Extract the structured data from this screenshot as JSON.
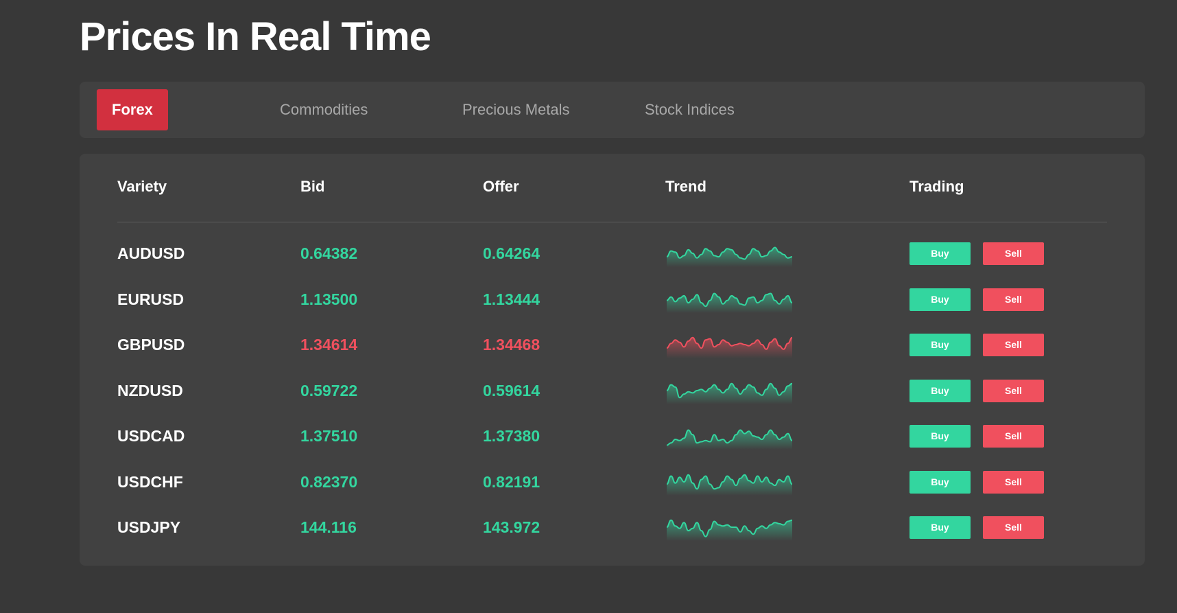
{
  "page": {
    "title": "Prices In Real Time"
  },
  "tabs": [
    {
      "label": "Forex",
      "active": true
    },
    {
      "label": "Commodities",
      "active": false
    },
    {
      "label": "Precious Metals",
      "active": false
    },
    {
      "label": "Stock Indices",
      "active": false
    }
  ],
  "table": {
    "headers": {
      "variety": "Variety",
      "bid": "Bid",
      "offer": "Offer",
      "trend": "Trend",
      "trading": "Trading"
    },
    "rows": [
      {
        "variety": "AUDUSD",
        "bid": "0.64382",
        "offer": "0.64264",
        "direction": "up",
        "trend": [
          0.35,
          0.6,
          0.55,
          0.3,
          0.4,
          0.65,
          0.5,
          0.3,
          0.45,
          0.7,
          0.6,
          0.4,
          0.35,
          0.55,
          0.7,
          0.65,
          0.45,
          0.3,
          0.25,
          0.45,
          0.7,
          0.6,
          0.35,
          0.4,
          0.6,
          0.75,
          0.55,
          0.45,
          0.3,
          0.35
        ]
      },
      {
        "variety": "EURUSD",
        "bid": "1.13500",
        "offer": "1.13444",
        "direction": "up",
        "trend": [
          0.45,
          0.6,
          0.4,
          0.55,
          0.65,
          0.35,
          0.5,
          0.7,
          0.35,
          0.2,
          0.45,
          0.75,
          0.6,
          0.3,
          0.45,
          0.65,
          0.55,
          0.3,
          0.25,
          0.55,
          0.6,
          0.35,
          0.45,
          0.7,
          0.75,
          0.45,
          0.3,
          0.5,
          0.65,
          0.35
        ]
      },
      {
        "variety": "GBPUSD",
        "bid": "1.34614",
        "offer": "1.34468",
        "direction": "down",
        "trend": [
          0.35,
          0.55,
          0.7,
          0.6,
          0.4,
          0.65,
          0.8,
          0.55,
          0.35,
          0.7,
          0.75,
          0.4,
          0.5,
          0.7,
          0.6,
          0.45,
          0.5,
          0.55,
          0.5,
          0.45,
          0.55,
          0.7,
          0.5,
          0.3,
          0.6,
          0.75,
          0.45,
          0.3,
          0.55,
          0.8
        ]
      },
      {
        "variety": "NZDUSD",
        "bid": "0.59722",
        "offer": "0.59614",
        "direction": "up",
        "trend": [
          0.5,
          0.75,
          0.65,
          0.2,
          0.35,
          0.45,
          0.4,
          0.5,
          0.55,
          0.45,
          0.6,
          0.75,
          0.55,
          0.4,
          0.55,
          0.8,
          0.6,
          0.35,
          0.55,
          0.75,
          0.65,
          0.4,
          0.3,
          0.55,
          0.8,
          0.6,
          0.3,
          0.45,
          0.7,
          0.8
        ]
      },
      {
        "variety": "USDCAD",
        "bid": "1.37510",
        "offer": "1.37380",
        "direction": "up",
        "trend": [
          0.1,
          0.2,
          0.35,
          0.3,
          0.4,
          0.75,
          0.55,
          0.2,
          0.25,
          0.3,
          0.25,
          0.55,
          0.3,
          0.35,
          0.2,
          0.3,
          0.55,
          0.75,
          0.6,
          0.7,
          0.5,
          0.45,
          0.35,
          0.55,
          0.75,
          0.55,
          0.35,
          0.45,
          0.6,
          0.3
        ]
      },
      {
        "variety": "USDCHF",
        "bid": "0.82370",
        "offer": "0.82191",
        "direction": "up",
        "trend": [
          0.4,
          0.75,
          0.45,
          0.7,
          0.5,
          0.8,
          0.45,
          0.2,
          0.6,
          0.75,
          0.4,
          0.2,
          0.25,
          0.5,
          0.75,
          0.6,
          0.35,
          0.65,
          0.8,
          0.55,
          0.45,
          0.75,
          0.5,
          0.7,
          0.45,
          0.35,
          0.6,
          0.5,
          0.75,
          0.4
        ]
      },
      {
        "variety": "USDJPY",
        "bid": "144.116",
        "offer": "143.972",
        "direction": "up",
        "trend": [
          0.5,
          0.8,
          0.55,
          0.45,
          0.7,
          0.35,
          0.45,
          0.7,
          0.35,
          0.1,
          0.4,
          0.75,
          0.6,
          0.55,
          0.6,
          0.5,
          0.5,
          0.3,
          0.55,
          0.35,
          0.2,
          0.45,
          0.55,
          0.45,
          0.6,
          0.7,
          0.65,
          0.6,
          0.75,
          0.8
        ]
      }
    ],
    "buy_label": "Buy",
    "sell_label": "Sell"
  },
  "colors": {
    "background": "#383838",
    "panel": "#414141",
    "accent": "#d2303f",
    "up": "#33d69f",
    "down": "#f0505e"
  }
}
